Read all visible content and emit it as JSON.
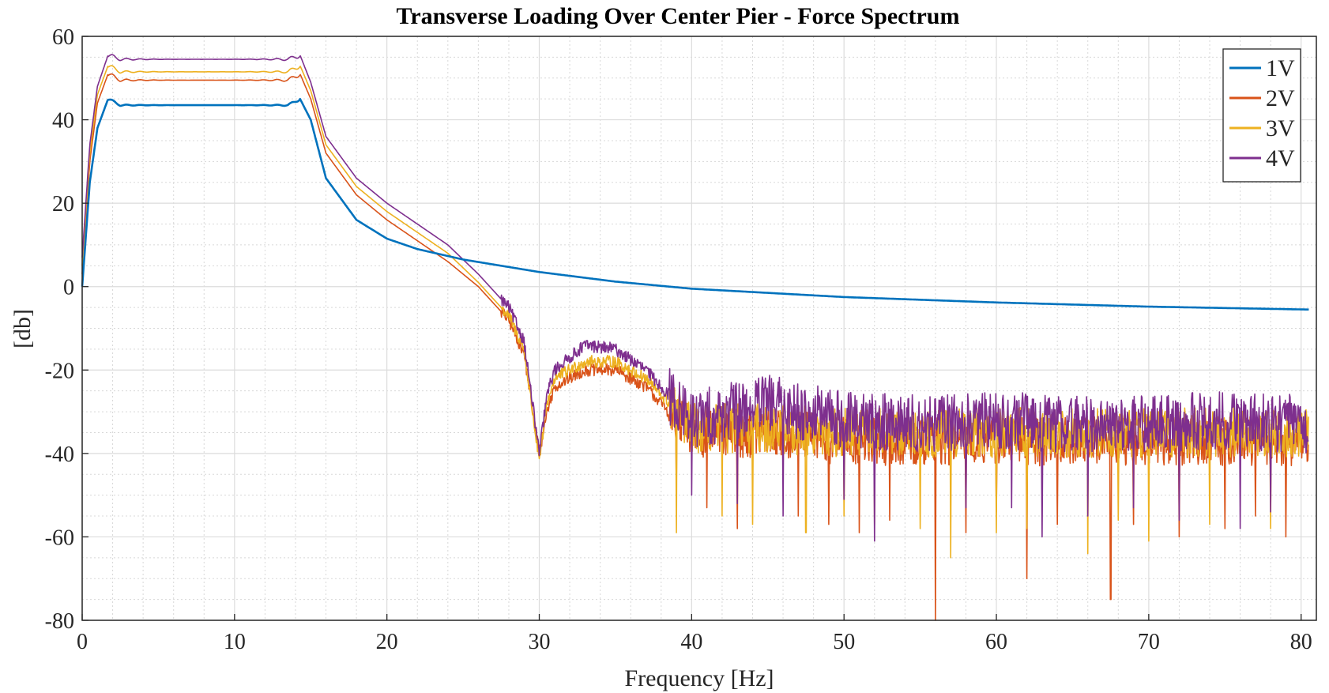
{
  "chart_data": {
    "type": "line",
    "title": "Transverse Loading Over Center Pier - Force Spectrum",
    "xlabel": "Frequency [Hz]",
    "ylabel": "[db]",
    "xlim": [
      0,
      81
    ],
    "ylim": [
      -80,
      60
    ],
    "xticks": [
      0,
      10,
      20,
      30,
      40,
      50,
      60,
      70,
      80
    ],
    "yticks": [
      -80,
      -60,
      -40,
      -20,
      0,
      20,
      40,
      60
    ],
    "grid": true,
    "minor_grid": true,
    "legend_position": "top-right",
    "series": [
      {
        "name": "1V",
        "color": "#0072BD",
        "points": [
          [
            0,
            0
          ],
          [
            0.5,
            25
          ],
          [
            1,
            38
          ],
          [
            1.7,
            45
          ],
          [
            2.5,
            43.5
          ],
          [
            8,
            43.5
          ],
          [
            13.5,
            43.5
          ],
          [
            14.3,
            45
          ],
          [
            15,
            40
          ],
          [
            16,
            26
          ],
          [
            18,
            16
          ],
          [
            20,
            11.5
          ],
          [
            22,
            9
          ],
          [
            25,
            6.5
          ],
          [
            30,
            3.5
          ],
          [
            35,
            1.2
          ],
          [
            40,
            -0.5
          ],
          [
            45,
            -1.5
          ],
          [
            50,
            -2.5
          ],
          [
            60,
            -3.8
          ],
          [
            70,
            -4.8
          ],
          [
            80.5,
            -5.5
          ]
        ]
      },
      {
        "name": "2V",
        "color": "#D95319",
        "points": [
          [
            0,
            3
          ],
          [
            0.5,
            30
          ],
          [
            1,
            44
          ],
          [
            1.7,
            51
          ],
          [
            2.5,
            49.5
          ],
          [
            8,
            49.5
          ],
          [
            13.5,
            49.5
          ],
          [
            14.3,
            51
          ],
          [
            15,
            45
          ],
          [
            16,
            32
          ],
          [
            18,
            22
          ],
          [
            20,
            16
          ],
          [
            22,
            11
          ],
          [
            24,
            6
          ],
          [
            26,
            0
          ],
          [
            28,
            -8
          ],
          [
            29,
            -16
          ],
          [
            30,
            -40
          ],
          [
            30.5,
            -30
          ],
          [
            31,
            -24
          ],
          [
            33,
            -20
          ],
          [
            35,
            -20
          ],
          [
            37,
            -24
          ],
          [
            38.5,
            -30
          ],
          [
            40,
            -35
          ],
          [
            45,
            -35
          ],
          [
            50,
            -37
          ],
          [
            55,
            -37
          ],
          [
            60,
            -37
          ],
          [
            65,
            -37
          ],
          [
            70,
            -37
          ],
          [
            75,
            -37
          ],
          [
            80.5,
            -37
          ]
        ],
        "noise": {
          "start": 38.5,
          "amplitude": 6,
          "dips": [
            [
              39,
              -49
            ],
            [
              41,
              -53
            ],
            [
              43,
              -58
            ],
            [
              47,
              -55
            ],
            [
              49,
              -57
            ],
            [
              51,
              -59
            ],
            [
              53,
              -56
            ],
            [
              56,
              -81
            ],
            [
              58,
              -59
            ],
            [
              60,
              -54
            ],
            [
              62,
              -70
            ],
            [
              64,
              -57
            ],
            [
              67.5,
              -75
            ],
            [
              69,
              -57
            ],
            [
              72,
              -60
            ],
            [
              75,
              -58
            ],
            [
              77,
              -55
            ],
            [
              79,
              -60
            ]
          ]
        }
      },
      {
        "name": "3V",
        "color": "#EDB120",
        "points": [
          [
            0,
            5
          ],
          [
            0.5,
            32
          ],
          [
            1,
            46
          ],
          [
            1.7,
            53
          ],
          [
            2.5,
            51.5
          ],
          [
            8,
            51.5
          ],
          [
            13.5,
            51.5
          ],
          [
            14.3,
            53
          ],
          [
            15,
            47
          ],
          [
            16,
            34
          ],
          [
            18,
            24
          ],
          [
            20,
            18
          ],
          [
            22,
            13
          ],
          [
            24,
            8
          ],
          [
            26,
            1
          ],
          [
            28,
            -7
          ],
          [
            29,
            -15
          ],
          [
            30,
            -42
          ],
          [
            30.5,
            -28
          ],
          [
            31,
            -22
          ],
          [
            33,
            -18
          ],
          [
            35,
            -18
          ],
          [
            37,
            -22
          ],
          [
            38.5,
            -28
          ],
          [
            40,
            -34
          ],
          [
            45,
            -34
          ],
          [
            50,
            -35
          ],
          [
            55,
            -35
          ],
          [
            60,
            -35
          ],
          [
            65,
            -35
          ],
          [
            70,
            -35
          ],
          [
            75,
            -35
          ],
          [
            80.5,
            -35
          ]
        ],
        "noise": {
          "start": 38.5,
          "amplitude": 6,
          "dips": [
            [
              39,
              -59
            ],
            [
              42,
              -55
            ],
            [
              44,
              -57
            ],
            [
              47.5,
              -59
            ],
            [
              50,
              -55
            ],
            [
              52,
              -57
            ],
            [
              55,
              -58
            ],
            [
              57,
              -65
            ],
            [
              60,
              -59
            ],
            [
              62,
              -58
            ],
            [
              66,
              -64
            ],
            [
              68,
              -56
            ],
            [
              70,
              -61
            ],
            [
              74,
              -57
            ],
            [
              78,
              -58
            ]
          ]
        }
      },
      {
        "name": "4V",
        "color": "#7E2F8E",
        "points": [
          [
            0,
            7
          ],
          [
            0.5,
            34
          ],
          [
            1,
            48
          ],
          [
            1.7,
            55.5
          ],
          [
            2.5,
            54.5
          ],
          [
            8,
            54.5
          ],
          [
            13.5,
            54.5
          ],
          [
            14.3,
            55.5
          ],
          [
            15,
            49
          ],
          [
            16,
            36
          ],
          [
            18,
            26
          ],
          [
            20,
            20
          ],
          [
            22,
            15
          ],
          [
            24,
            10
          ],
          [
            26,
            3
          ],
          [
            28,
            -5
          ],
          [
            29,
            -13
          ],
          [
            30,
            -40
          ],
          [
            30.5,
            -26
          ],
          [
            31,
            -20
          ],
          [
            33,
            -14
          ],
          [
            35,
            -15
          ],
          [
            37,
            -20
          ],
          [
            38.5,
            -26
          ],
          [
            40,
            -32
          ],
          [
            45,
            -28
          ],
          [
            50,
            -32
          ],
          [
            55,
            -33
          ],
          [
            60,
            -32
          ],
          [
            65,
            -33
          ],
          [
            70,
            -33
          ],
          [
            75,
            -32
          ],
          [
            80.5,
            -33
          ]
        ],
        "noise": {
          "start": 38.5,
          "amplitude": 7,
          "dips": [
            [
              40,
              -50
            ],
            [
              43,
              -52
            ],
            [
              46,
              -55
            ],
            [
              50,
              -51
            ],
            [
              52,
              -61
            ],
            [
              58,
              -53
            ],
            [
              61,
              -53
            ],
            [
              63,
              -60
            ],
            [
              66,
              -55
            ],
            [
              69,
              -53
            ],
            [
              72,
              -56
            ],
            [
              76,
              -58
            ],
            [
              78,
              -54
            ]
          ]
        }
      }
    ]
  }
}
